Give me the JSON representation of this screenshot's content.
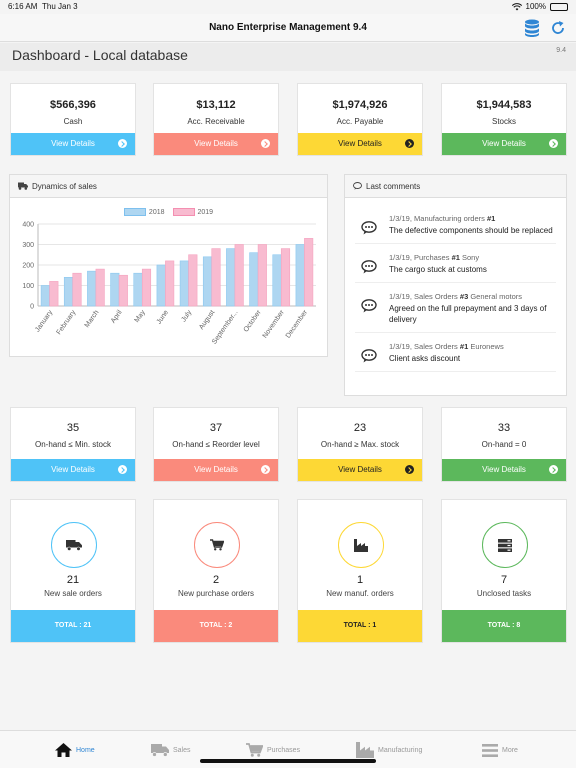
{
  "status": {
    "time": "6:16 AM",
    "date": "Thu Jan 3",
    "battery": "100%"
  },
  "app": {
    "title": "Nano Enterprise Management 9.4"
  },
  "page": {
    "title": "Dashboard - Local database",
    "version": "9.4"
  },
  "colors": {
    "blue": "#4fc3f7",
    "red": "#fa8a7c",
    "yellow": "#fdd835",
    "green": "#5cb85c",
    "accent": "#2f86d4"
  },
  "summary": [
    {
      "value": "$566,396",
      "label": "Cash",
      "button": "View Details",
      "color": "#4fc3f7"
    },
    {
      "value": "$13,112",
      "label": "Acc. Receivable",
      "button": "View Details",
      "color": "#fa8a7c"
    },
    {
      "value": "$1,974,926",
      "label": "Acc. Payable",
      "button": "View Details",
      "color": "#fdd835"
    },
    {
      "value": "$1,944,583",
      "label": "Stocks",
      "button": "View Details",
      "color": "#5cb85c"
    }
  ],
  "sales_panel": {
    "title": "Dynamics of sales",
    "icon": "truck-icon"
  },
  "chart_data": {
    "type": "bar",
    "categories": [
      "January",
      "February",
      "March",
      "April",
      "May",
      "June",
      "July",
      "August",
      "September",
      "October",
      "November",
      "December"
    ],
    "tick_labels": [
      "January",
      "February",
      "March",
      "April",
      "May",
      "June",
      "July",
      "August",
      "September...",
      "October",
      "November",
      "December"
    ],
    "series": [
      {
        "name": "2018",
        "color": "#aed6f1",
        "values": [
          100,
          140,
          170,
          160,
          160,
          200,
          220,
          240,
          280,
          260,
          250,
          300
        ]
      },
      {
        "name": "2019",
        "color": "#f8bbd0",
        "values": [
          120,
          160,
          180,
          150,
          180,
          220,
          250,
          280,
          300,
          300,
          280,
          330
        ]
      }
    ],
    "ylim": [
      0,
      400
    ],
    "yticks": [
      "0",
      "100",
      "200",
      "300",
      "400"
    ],
    "legend": "top",
    "grid": true
  },
  "comments_panel": {
    "title": "Last comments",
    "items": [
      {
        "date": "1/3/19,",
        "doc": "Manufacturing orders",
        "num": "#1",
        "party": "",
        "text": "The defective components should be replaced"
      },
      {
        "date": "1/3/19,",
        "doc": "Purchases",
        "num": "#1",
        "party": "Sony",
        "text": "The cargo stuck at customs"
      },
      {
        "date": "1/3/19,",
        "doc": "Sales Orders",
        "num": "#3",
        "party": "General motors",
        "text": "Agreed on the full prepayment and 3 days of delivery"
      },
      {
        "date": "1/3/19,",
        "doc": "Sales Orders",
        "num": "#1",
        "party": "Euronews",
        "text": "Client asks discount"
      }
    ]
  },
  "stock": [
    {
      "value": "35",
      "label": "On-hand ≤ Min. stock",
      "button": "View Details",
      "color": "#4fc3f7"
    },
    {
      "value": "37",
      "label": "On-hand ≤ Reorder level",
      "button": "View Details",
      "color": "#fa8a7c"
    },
    {
      "value": "23",
      "label": "On-hand ≥ Max. stock",
      "button": "View Details",
      "color": "#fdd835"
    },
    {
      "value": "33",
      "label": "On-hand = 0",
      "button": "View Details",
      "color": "#5cb85c"
    }
  ],
  "orders": [
    {
      "count": "21",
      "label": "New sale orders",
      "total": "TOTAL : 21",
      "icon": "truck-icon",
      "color": "#4fc3f7"
    },
    {
      "count": "2",
      "label": "New purchase orders",
      "total": "TOTAL : 2",
      "icon": "cart-icon",
      "color": "#fa8a7c"
    },
    {
      "count": "1",
      "label": "New manuf. orders",
      "total": "TOTAL : 1",
      "icon": "factory-icon",
      "color": "#fdd835"
    },
    {
      "count": "7",
      "label": "Unclosed tasks",
      "total": "TOTAL : 8",
      "icon": "server-icon",
      "color": "#5cb85c"
    }
  ],
  "tabs": [
    {
      "label": "Home",
      "icon": "home-icon",
      "active": true
    },
    {
      "label": "Sales",
      "icon": "truck-icon",
      "active": false
    },
    {
      "label": "Purchases",
      "icon": "cart-icon",
      "active": false
    },
    {
      "label": "Manufacturing",
      "icon": "factory-icon",
      "active": false
    },
    {
      "label": "More",
      "icon": "menu-icon",
      "active": false
    }
  ]
}
